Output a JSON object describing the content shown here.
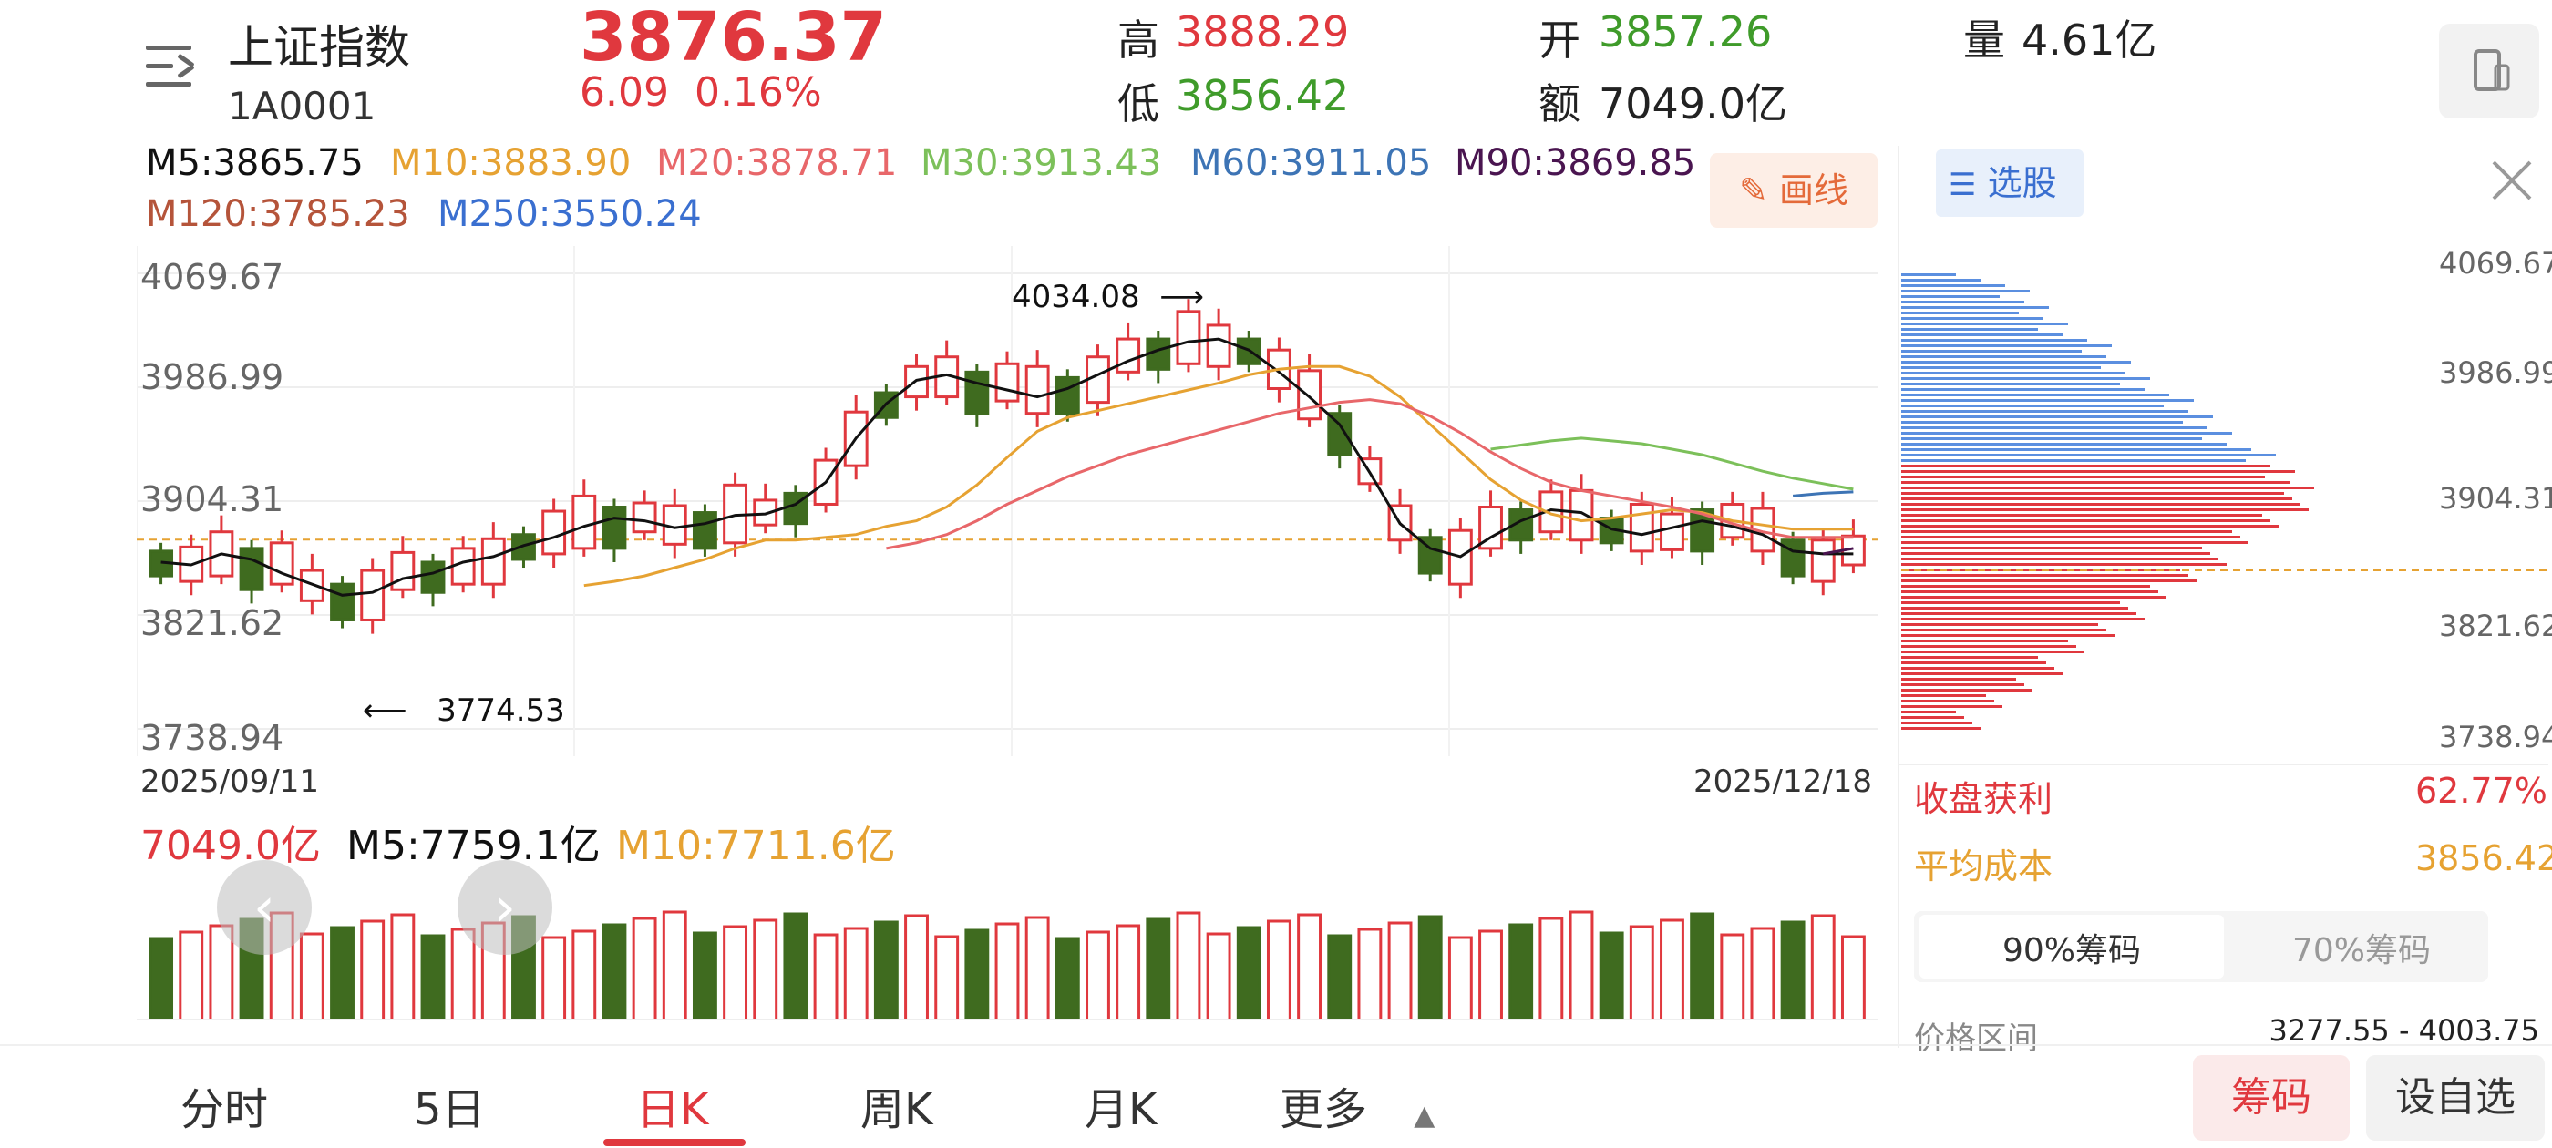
{
  "header": {
    "name": "上证指数",
    "code": "1A0001",
    "price": "3876.37",
    "change": "6.09",
    "change_pct": "0.16%",
    "high_label": "高",
    "high": "3888.29",
    "low_label": "低",
    "low": "3856.42",
    "open_label": "开",
    "open": "3857.26",
    "amount_label": "额",
    "amount": "7049.0亿",
    "volume_label": "量",
    "volume": "4.61亿"
  },
  "ma": {
    "m5": "M5:3865.75",
    "m10": "M10:3883.90",
    "m20": "M20:3878.71",
    "m30": "M30:3913.43",
    "m60": "M60:3911.05",
    "m90": "M90:3869.85",
    "m120": "M120:3785.23",
    "m250": "M250:3550.24"
  },
  "colors": {
    "up": "#e0383e",
    "down": "#3f6b1f",
    "m5": "#111111",
    "m10": "#e6a232",
    "m20": "#e8676a",
    "m30": "#7cc05a",
    "m60": "#3d74b5",
    "m90": "#4a1550",
    "m120": "#b5543a",
    "m250": "#3a6fd0"
  },
  "draw_button": "画线",
  "chart_data": {
    "type": "candlestick",
    "y_ticks": [
      "4069.67",
      "3986.99",
      "3904.31",
      "3821.62",
      "3738.94"
    ],
    "ylim": [
      3738.94,
      4069.67
    ],
    "x_start": "2025/09/11",
    "x_end": "2025/12/18",
    "annotations": {
      "max": "4034.08",
      "min": "3774.53"
    },
    "series": [
      {
        "name": "M5",
        "values": [
          3860,
          3858,
          3866,
          3862,
          3852,
          3844,
          3836,
          3838,
          3848,
          3852,
          3860,
          3864,
          3872,
          3878,
          3886,
          3892,
          3890,
          3885,
          3888,
          3894,
          3895,
          3902,
          3918,
          3950,
          3975,
          3992,
          3996,
          3990,
          3985,
          3980,
          3986,
          3996,
          4006,
          4014,
          4020,
          4022,
          4014,
          3998,
          3980,
          3960,
          3925,
          3888,
          3870,
          3864,
          3878,
          3890,
          3898,
          3896,
          3884,
          3880,
          3885,
          3890,
          3886,
          3880,
          3868,
          3866,
          3866
        ]
      },
      {
        "name": "M10",
        "values": [
          null,
          null,
          null,
          null,
          null,
          null,
          null,
          null,
          null,
          3843,
          3846,
          3850,
          3856,
          3862,
          3870,
          3876,
          3876,
          3878,
          3880,
          3886,
          3890,
          3900,
          3916,
          3936,
          3955,
          3965,
          3970,
          3975,
          3980,
          3985,
          3990,
          3996,
          4000,
          4002,
          4002,
          3995,
          3980,
          3960,
          3940,
          3920,
          3905,
          3895,
          3890,
          3892,
          3895,
          3898,
          3896,
          3890,
          3887,
          3884,
          3884,
          3884
        ]
      },
      {
        "name": "M20",
        "values": [
          null,
          null,
          null,
          null,
          null,
          null,
          null,
          null,
          null,
          null,
          null,
          null,
          null,
          null,
          null,
          null,
          null,
          null,
          null,
          3870,
          3874,
          3880,
          3890,
          3902,
          3912,
          3922,
          3930,
          3938,
          3944,
          3950,
          3956,
          3962,
          3968,
          3972,
          3976,
          3978,
          3975,
          3966,
          3954,
          3940,
          3928,
          3918,
          3912,
          3908,
          3904,
          3900,
          3895,
          3888,
          3882,
          3878,
          3878,
          3878
        ]
      },
      {
        "name": "M30",
        "values": [
          null,
          null,
          null,
          null,
          null,
          null,
          null,
          null,
          null,
          null,
          null,
          null,
          null,
          null,
          null,
          null,
          null,
          null,
          null,
          null,
          null,
          null,
          null,
          null,
          null,
          null,
          null,
          null,
          null,
          3942,
          3945,
          3948,
          3950,
          3948,
          3946,
          3942,
          3938,
          3932,
          3926,
          3921,
          3917,
          3913
        ]
      },
      {
        "name": "M60",
        "values": [
          null,
          null,
          null,
          null,
          null,
          null,
          null,
          null,
          null,
          null,
          null,
          null,
          null,
          null,
          null,
          null,
          null,
          null,
          null,
          null,
          null,
          null,
          null,
          null,
          null,
          null,
          null,
          null,
          null,
          null,
          null,
          null,
          null,
          null,
          null,
          null,
          null,
          null,
          null,
          3908,
          3910,
          3911
        ]
      },
      {
        "name": "M90",
        "values": [
          null,
          null,
          null,
          null,
          null,
          null,
          null,
          null,
          null,
          null,
          null,
          null,
          null,
          null,
          null,
          null,
          null,
          null,
          null,
          null,
          null,
          null,
          null,
          null,
          null,
          null,
          null,
          null,
          null,
          null,
          null,
          null,
          null,
          null,
          null,
          null,
          null,
          null,
          null,
          null,
          3866,
          3870
        ]
      }
    ]
  },
  "volume": {
    "current": "7049.0亿",
    "m5": "M5:7759.1亿",
    "m10": "M10:7711.6亿"
  },
  "chip_panel": {
    "select_label": "选股",
    "y_ticks": [
      "4069.67",
      "3986.99",
      "3904.31",
      "3821.62",
      "3738.94"
    ],
    "profit_label": "收盘获利",
    "profit_value": "62.77%",
    "cost_label": "平均成本",
    "cost_value": "3856.42",
    "tab_90": "90%筹码",
    "tab_70": "70%筹码",
    "range_label": "价格区间",
    "range_value": "3277.55 - 4003.75"
  },
  "tabs": [
    "分时",
    "5日",
    "日K",
    "周K",
    "月K",
    "更多"
  ],
  "bottom_buttons": {
    "chips": "筹码",
    "add_watch": "设自选"
  }
}
